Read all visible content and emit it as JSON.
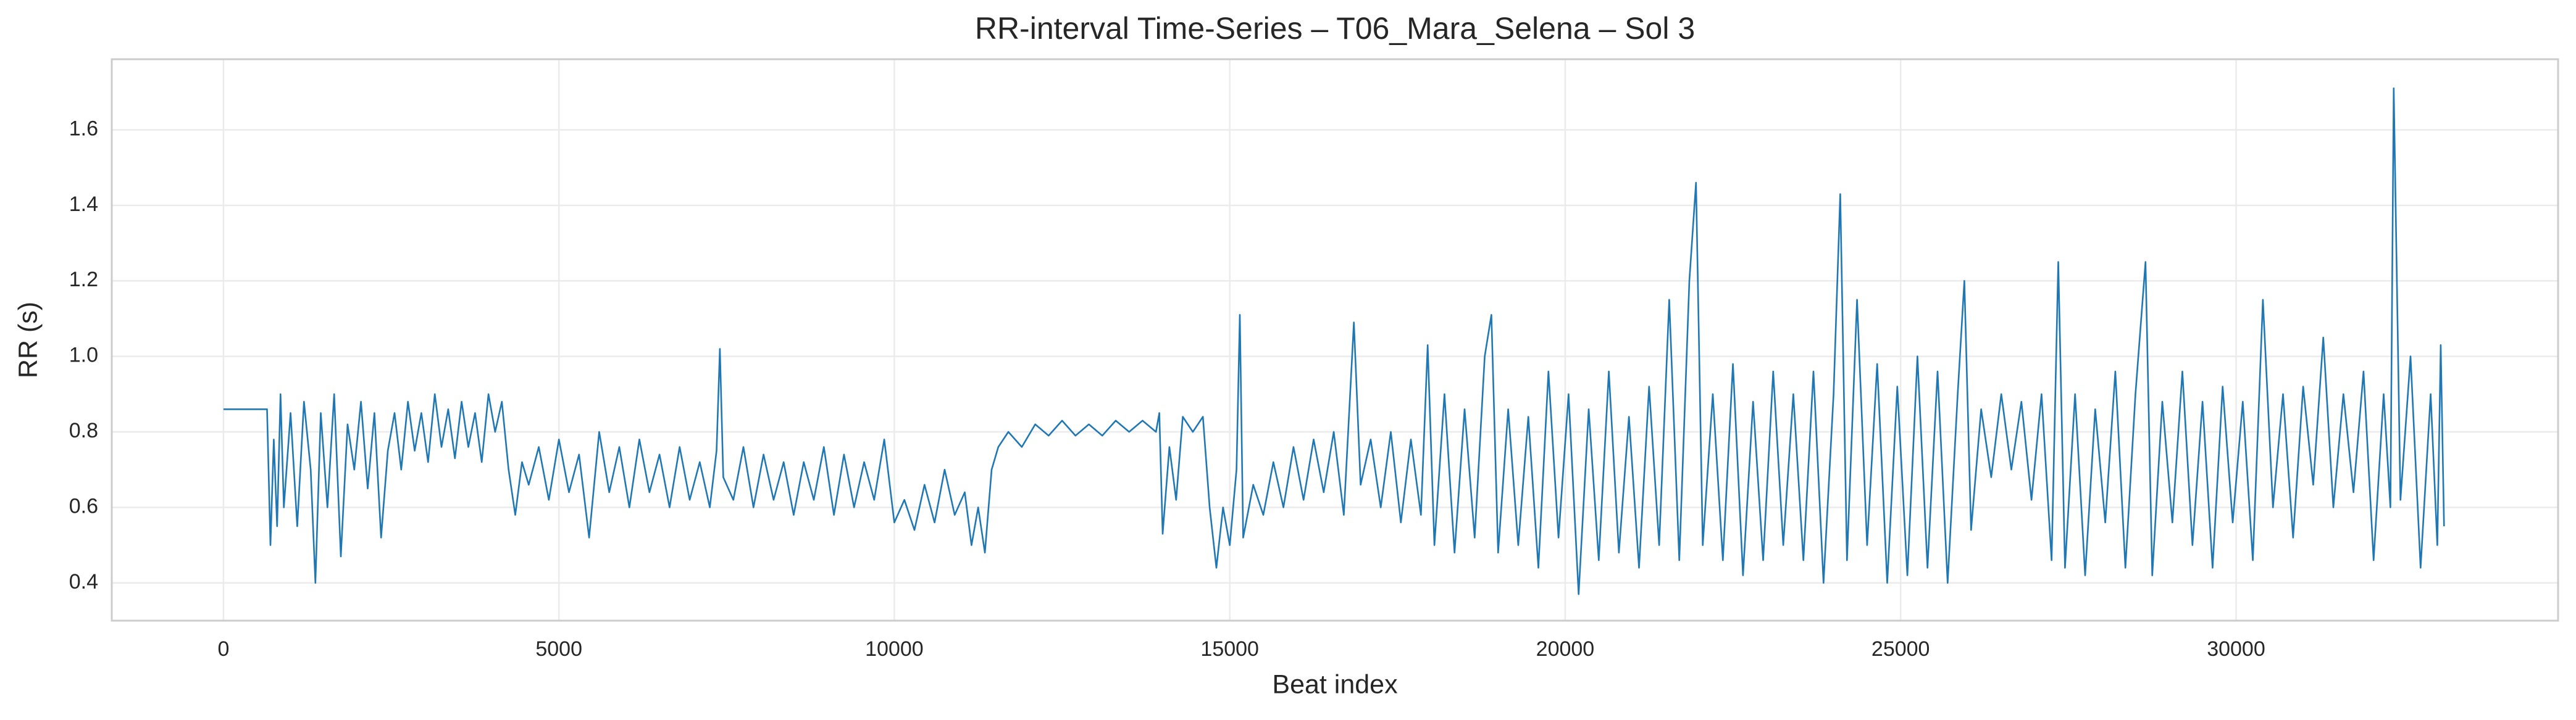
{
  "chart_data": {
    "type": "line",
    "title": "RR-interval Time-Series – T06_Mara_Selena – Sol 3",
    "x_label": "Beat index",
    "y_label": "RR (s)",
    "color": "#1f77b4",
    "grid": true,
    "xlim": [
      -1665,
      34800
    ],
    "ylim": [
      0.3,
      1.787
    ],
    "xticks": [
      0,
      5000,
      10000,
      15000,
      20000,
      25000,
      30000
    ],
    "yticks": [
      0.4,
      0.6,
      0.8,
      {
        "value": 1,
        "label": "1.0"
      },
      1.2,
      1.4,
      1.6
    ],
    "x": [
      0,
      650,
      700,
      750,
      800,
      850,
      900,
      1000,
      1100,
      1200,
      1300,
      1370,
      1450,
      1550,
      1650,
      1750,
      1850,
      1950,
      2050,
      2150,
      2250,
      2350,
      2450,
      2550,
      2650,
      2750,
      2850,
      2950,
      3050,
      3150,
      3250,
      3350,
      3450,
      3550,
      3650,
      3750,
      3850,
      3950,
      4050,
      4150,
      4250,
      4350,
      4450,
      4550,
      4700,
      4850,
      5000,
      5150,
      5300,
      5450,
      5600,
      5750,
      5900,
      6050,
      6200,
      6350,
      6500,
      6650,
      6800,
      6950,
      7100,
      7250,
      7350,
      7400,
      7450,
      7600,
      7750,
      7900,
      8050,
      8200,
      8350,
      8500,
      8650,
      8800,
      8950,
      9100,
      9250,
      9400,
      9550,
      9700,
      9850,
      10000,
      10150,
      10300,
      10450,
      10600,
      10750,
      10900,
      11050,
      11150,
      11250,
      11350,
      11450,
      11550,
      11700,
      11900,
      12100,
      12300,
      12500,
      12700,
      12900,
      13100,
      13300,
      13500,
      13700,
      13900,
      13950,
      14000,
      14100,
      14200,
      14300,
      14450,
      14600,
      14700,
      14800,
      14900,
      15000,
      15100,
      15150,
      15200,
      15350,
      15500,
      15650,
      15800,
      15950,
      16100,
      16250,
      16400,
      16550,
      16700,
      16850,
      16950,
      17100,
      17250,
      17400,
      17550,
      17700,
      17850,
      17950,
      18050,
      18200,
      18350,
      18500,
      18650,
      18800,
      18900,
      19000,
      19150,
      19300,
      19450,
      19600,
      19750,
      19900,
      20050,
      20200,
      20350,
      20500,
      20650,
      20800,
      20950,
      21100,
      21250,
      21400,
      21550,
      21700,
      21850,
      21950,
      22050,
      22200,
      22350,
      22500,
      22650,
      22800,
      22950,
      23100,
      23250,
      23400,
      23550,
      23700,
      23850,
      24000,
      24100,
      24200,
      24350,
      24500,
      24650,
      24800,
      24950,
      25100,
      25250,
      25400,
      25550,
      25700,
      25850,
      25950,
      26050,
      26200,
      26350,
      26500,
      26650,
      26800,
      26950,
      27100,
      27250,
      27350,
      27450,
      27600,
      27750,
      27900,
      28050,
      28200,
      28350,
      28500,
      28650,
      28750,
      28900,
      29050,
      29200,
      29350,
      29500,
      29650,
      29800,
      29950,
      30100,
      30250,
      30400,
      30550,
      30700,
      30850,
      31000,
      31150,
      31300,
      31450,
      31600,
      31750,
      31900,
      32050,
      32200,
      32300,
      32350,
      32450,
      32600,
      32750,
      32900,
      33000,
      33050,
      33100
    ],
    "values": [
      0.86,
      0.86,
      0.5,
      0.78,
      0.55,
      0.9,
      0.6,
      0.85,
      0.55,
      0.88,
      0.7,
      0.4,
      0.85,
      0.6,
      0.9,
      0.47,
      0.82,
      0.7,
      0.88,
      0.65,
      0.85,
      0.52,
      0.75,
      0.85,
      0.7,
      0.88,
      0.75,
      0.85,
      0.72,
      0.9,
      0.76,
      0.86,
      0.73,
      0.88,
      0.76,
      0.85,
      0.72,
      0.9,
      0.8,
      0.88,
      0.7,
      0.58,
      0.72,
      0.66,
      0.76,
      0.62,
      0.78,
      0.64,
      0.74,
      0.52,
      0.8,
      0.64,
      0.76,
      0.6,
      0.78,
      0.64,
      0.74,
      0.6,
      0.76,
      0.62,
      0.72,
      0.6,
      0.75,
      1.02,
      0.68,
      0.62,
      0.76,
      0.6,
      0.74,
      0.62,
      0.72,
      0.58,
      0.72,
      0.62,
      0.76,
      0.58,
      0.74,
      0.6,
      0.72,
      0.62,
      0.78,
      0.56,
      0.62,
      0.54,
      0.66,
      0.56,
      0.7,
      0.58,
      0.64,
      0.5,
      0.6,
      0.48,
      0.7,
      0.76,
      0.8,
      0.76,
      0.82,
      0.79,
      0.83,
      0.79,
      0.82,
      0.79,
      0.83,
      0.8,
      0.83,
      0.8,
      0.85,
      0.53,
      0.76,
      0.62,
      0.84,
      0.8,
      0.84,
      0.6,
      0.44,
      0.6,
      0.5,
      0.7,
      1.11,
      0.52,
      0.66,
      0.58,
      0.72,
      0.6,
      0.76,
      0.62,
      0.78,
      0.64,
      0.8,
      0.58,
      1.09,
      0.66,
      0.78,
      0.6,
      0.8,
      0.56,
      0.78,
      0.58,
      1.03,
      0.5,
      0.9,
      0.48,
      0.86,
      0.52,
      1.0,
      1.11,
      0.48,
      0.86,
      0.5,
      0.84,
      0.44,
      0.96,
      0.52,
      0.9,
      0.37,
      0.86,
      0.46,
      0.96,
      0.48,
      0.84,
      0.44,
      0.92,
      0.5,
      1.15,
      0.46,
      1.2,
      1.46,
      0.5,
      0.9,
      0.46,
      0.98,
      0.42,
      0.88,
      0.46,
      0.96,
      0.5,
      0.9,
      0.46,
      0.96,
      0.4,
      0.9,
      1.43,
      0.46,
      1.15,
      0.5,
      0.98,
      0.4,
      0.92,
      0.42,
      1.0,
      0.44,
      0.96,
      0.4,
      0.9,
      1.2,
      0.54,
      0.86,
      0.68,
      0.9,
      0.7,
      0.88,
      0.62,
      0.9,
      0.46,
      1.25,
      0.44,
      0.9,
      0.42,
      0.86,
      0.56,
      0.96,
      0.44,
      0.9,
      1.25,
      0.42,
      0.88,
      0.56,
      0.96,
      0.5,
      0.88,
      0.44,
      0.92,
      0.56,
      0.88,
      0.46,
      1.15,
      0.6,
      0.9,
      0.52,
      0.92,
      0.66,
      1.05,
      0.6,
      0.9,
      0.64,
      0.96,
      0.46,
      0.9,
      0.6,
      1.71,
      0.62,
      1.0,
      0.44,
      0.9,
      0.5,
      1.03,
      0.55
    ]
  }
}
